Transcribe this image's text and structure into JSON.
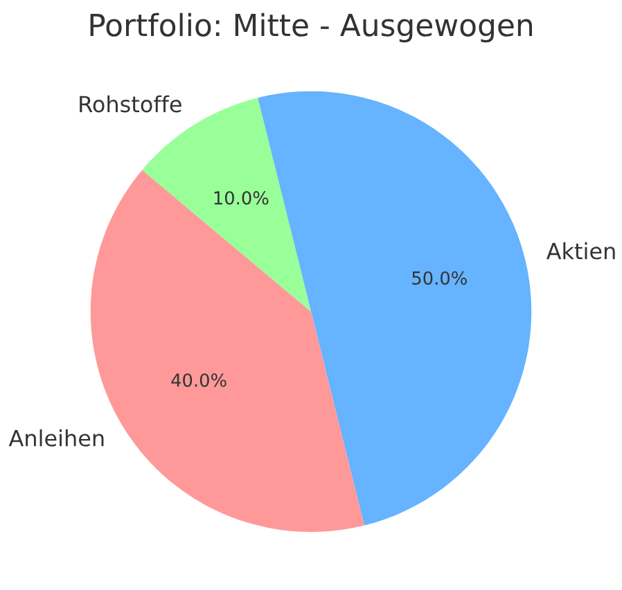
{
  "chart_data": {
    "type": "pie",
    "title": "Portfolio: Mitte - Ausgewogen",
    "categories": [
      "Aktien",
      "Anleihen",
      "Rohstoffe"
    ],
    "values": [
      50,
      40,
      10
    ],
    "colors": [
      "#66b3ff",
      "#ff9999",
      "#99ff99"
    ],
    "value_labels": [
      "50.0%",
      "40.0%",
      "10.0%"
    ]
  }
}
